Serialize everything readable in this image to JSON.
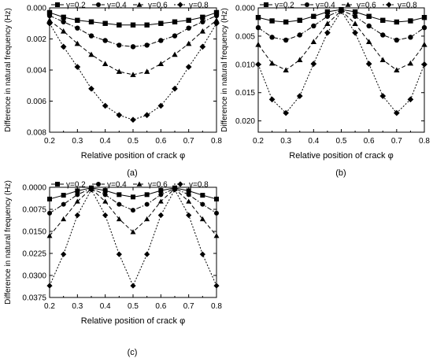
{
  "chart_data": [
    {
      "type": "line",
      "panel": "(a)",
      "xlabel": "Relative position of crack  φ",
      "ylabel": "Difference in natural frequency (Hz)",
      "xlim": [
        0.2,
        0.8
      ],
      "ylim": [
        0.008,
        0.0
      ],
      "y_reversed": true,
      "xticks": [
        "0.2",
        "0.3",
        "0.4",
        "0.5",
        "0.6",
        "0.7",
        "0.8"
      ],
      "yticks": [
        "0.000",
        "0.002",
        "0.004",
        "0.006",
        "0.008"
      ],
      "legend_position": "top",
      "x": [
        0.2,
        0.25,
        0.3,
        0.35,
        0.4,
        0.45,
        0.5,
        0.55,
        0.6,
        0.65,
        0.7,
        0.75,
        0.8
      ],
      "series": [
        {
          "name": "γ=0.2",
          "marker": "square",
          "dash": "solid",
          "values": [
            0.0003,
            0.0006,
            0.0008,
            0.0009,
            0.001,
            0.0011,
            0.0011,
            0.0011,
            0.001,
            0.0009,
            0.0008,
            0.0006,
            0.0003
          ]
        },
        {
          "name": "γ=0.4",
          "marker": "circle",
          "dash": "dashdot",
          "values": [
            0.0005,
            0.0009,
            0.0013,
            0.0018,
            0.0021,
            0.0024,
            0.0025,
            0.0024,
            0.0021,
            0.0018,
            0.0013,
            0.0009,
            0.0005
          ]
        },
        {
          "name": "γ=0.6",
          "marker": "triangle",
          "dash": "dash",
          "values": [
            0.0008,
            0.0015,
            0.0023,
            0.003,
            0.0036,
            0.0041,
            0.0043,
            0.0041,
            0.0036,
            0.003,
            0.0023,
            0.0015,
            0.0008
          ]
        },
        {
          "name": "γ=0.8",
          "marker": "diamond",
          "dash": "dot",
          "values": [
            0.001,
            0.0025,
            0.0038,
            0.0052,
            0.0063,
            0.0069,
            0.0072,
            0.0069,
            0.0063,
            0.0052,
            0.0038,
            0.0025,
            0.001
          ]
        }
      ]
    },
    {
      "type": "line",
      "panel": "(b)",
      "xlabel": "Relative position of crack  φ",
      "ylabel": "Difference in natural frequency (Hz)",
      "xlim": [
        0.2,
        0.8
      ],
      "ylim": [
        0.022,
        0.0
      ],
      "y_reversed": true,
      "xticks": [
        "0.2",
        "0.3",
        "0.4",
        "0.5",
        "0.6",
        "0.7",
        "0.8"
      ],
      "yticks": [
        "0.000",
        "0.005",
        "0.010",
        "0.015",
        "0.020"
      ],
      "legend_position": "top",
      "x": [
        0.2,
        0.25,
        0.3,
        0.35,
        0.4,
        0.45,
        0.5,
        0.55,
        0.6,
        0.65,
        0.7,
        0.75,
        0.8
      ],
      "series": [
        {
          "name": "γ=0.2",
          "marker": "square",
          "dash": "solid",
          "values": [
            0.0017,
            0.0023,
            0.0025,
            0.0022,
            0.0015,
            0.0007,
            0.0003,
            0.0007,
            0.0015,
            0.0022,
            0.0025,
            0.0023,
            0.0017
          ]
        },
        {
          "name": "γ=0.4",
          "marker": "circle",
          "dash": "dashdot",
          "values": [
            0.0035,
            0.0052,
            0.0057,
            0.0048,
            0.0032,
            0.0015,
            0.0004,
            0.0015,
            0.0032,
            0.0048,
            0.0057,
            0.0052,
            0.0035
          ]
        },
        {
          "name": "γ=0.6",
          "marker": "triangle",
          "dash": "dash",
          "values": [
            0.0065,
            0.0098,
            0.011,
            0.0092,
            0.006,
            0.0028,
            0.0005,
            0.0028,
            0.006,
            0.0092,
            0.011,
            0.0098,
            0.0065
          ]
        },
        {
          "name": "γ=0.8",
          "marker": "diamond",
          "dash": "dot",
          "values": [
            0.01,
            0.0162,
            0.0186,
            0.0156,
            0.0099,
            0.0044,
            0.0006,
            0.0044,
            0.0099,
            0.0156,
            0.0186,
            0.0162,
            0.01
          ]
        }
      ]
    },
    {
      "type": "line",
      "panel": "(c)",
      "xlabel": "Relative position of crack  φ",
      "ylabel": "Difference in natural frequency (Hz)",
      "xlim": [
        0.2,
        0.8
      ],
      "ylim": [
        0.0375,
        0.0
      ],
      "y_reversed": true,
      "xticks": [
        "0.2",
        "0.3",
        "0.4",
        "0.5",
        "0.6",
        "0.7",
        "0.8"
      ],
      "yticks": [
        "0.0000",
        "0.0075",
        "0.0150",
        "0.0225",
        "0.0300",
        "0.0375"
      ],
      "legend_position": "top",
      "x": [
        0.2,
        0.25,
        0.3,
        0.35,
        0.4,
        0.45,
        0.5,
        0.55,
        0.6,
        0.65,
        0.7,
        0.75,
        0.8
      ],
      "series": [
        {
          "name": "γ=0.2",
          "marker": "square",
          "dash": "solid",
          "values": [
            0.004,
            0.0027,
            0.0012,
            0.0002,
            0.0011,
            0.0025,
            0.0033,
            0.0025,
            0.0011,
            0.0002,
            0.0012,
            0.0027,
            0.004
          ]
        },
        {
          "name": "γ=0.4",
          "marker": "circle",
          "dash": "dashdot",
          "values": [
            0.0088,
            0.0058,
            0.0025,
            0.0004,
            0.0025,
            0.0058,
            0.0078,
            0.0058,
            0.0025,
            0.0004,
            0.0025,
            0.0058,
            0.0088
          ]
        },
        {
          "name": "γ=0.6",
          "marker": "triangle",
          "dash": "dash",
          "values": [
            0.0165,
            0.0108,
            0.0048,
            0.0005,
            0.0048,
            0.0108,
            0.0152,
            0.0108,
            0.0048,
            0.0005,
            0.0048,
            0.0108,
            0.0165
          ]
        },
        {
          "name": "γ=0.8",
          "marker": "diamond",
          "dash": "dot",
          "values": [
            0.0335,
            0.0228,
            0.0095,
            0.0008,
            0.0095,
            0.0228,
            0.0335,
            0.0228,
            0.0095,
            0.0008,
            0.0095,
            0.0228,
            0.0335
          ]
        }
      ]
    }
  ]
}
